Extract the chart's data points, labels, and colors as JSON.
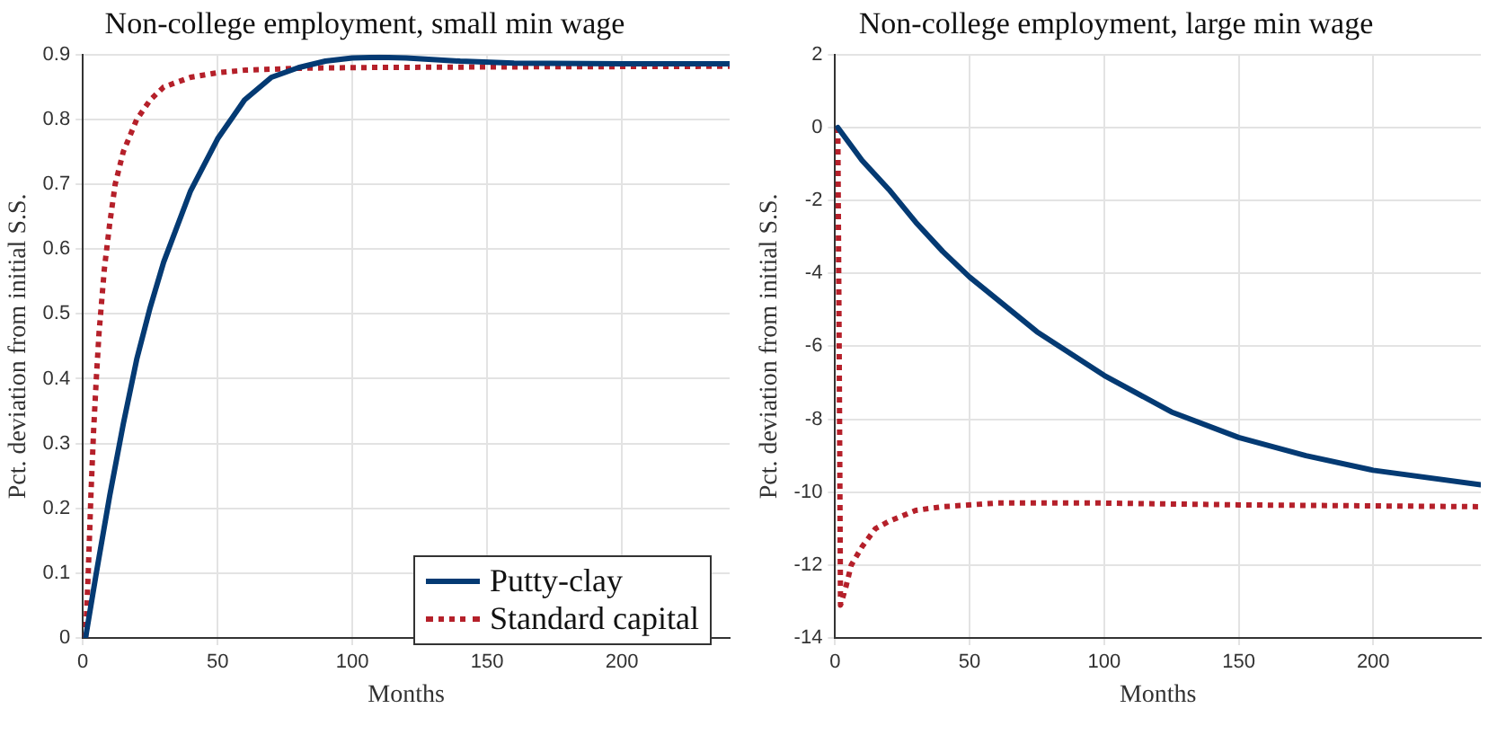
{
  "chart_data": [
    {
      "type": "line",
      "title": "Non-college employment, small min wage",
      "xlabel": "Months",
      "ylabel": "Pct. deviation from initial S.S.",
      "xlim": [
        0,
        240
      ],
      "xticks": [
        0,
        50,
        100,
        150,
        200
      ],
      "ylim": [
        0,
        0.9
      ],
      "yticks": [
        0,
        0.1,
        0.2,
        0.3,
        0.4,
        0.5,
        0.6,
        0.7,
        0.8,
        0.9
      ],
      "grid": true,
      "legend": "bottom right",
      "series": [
        {
          "name": "Putty-clay",
          "color": "#043a73",
          "line_style": "solid",
          "x": [
            1,
            5,
            10,
            15,
            20,
            25,
            30,
            40,
            50,
            60,
            70,
            80,
            90,
            100,
            110,
            120,
            140,
            160,
            200,
            240
          ],
          "values": [
            0,
            0.1,
            0.22,
            0.33,
            0.43,
            0.51,
            0.58,
            0.69,
            0.77,
            0.83,
            0.865,
            0.88,
            0.89,
            0.895,
            0.896,
            0.895,
            0.89,
            0.887,
            0.886,
            0.886
          ]
        },
        {
          "name": "Standard capital",
          "color": "#b5202a",
          "line_style": "dotted",
          "x": [
            1,
            2,
            3,
            4,
            5,
            6,
            8,
            10,
            12,
            15,
            20,
            25,
            30,
            40,
            50,
            60,
            80,
            100,
            150,
            240
          ],
          "values": [
            0,
            0.1,
            0.22,
            0.32,
            0.4,
            0.47,
            0.57,
            0.64,
            0.7,
            0.75,
            0.8,
            0.83,
            0.85,
            0.865,
            0.872,
            0.876,
            0.879,
            0.88,
            0.881,
            0.882
          ]
        }
      ]
    },
    {
      "type": "line",
      "title": "Non-college employment, large min wage",
      "xlabel": "Months",
      "ylabel": "Pct. deviation from initial S.S.",
      "xlim": [
        0,
        240
      ],
      "xticks": [
        0,
        50,
        100,
        150,
        200
      ],
      "ylim": [
        -14,
        2
      ],
      "yticks": [
        -14,
        -12,
        -10,
        -8,
        -6,
        -4,
        -2,
        0,
        2
      ],
      "grid": true,
      "series": [
        {
          "color": "#043a73",
          "line_style": "solid",
          "x": [
            1,
            10,
            20,
            30,
            40,
            50,
            60,
            75,
            100,
            125,
            150,
            175,
            200,
            240
          ],
          "values": [
            0,
            -0.9,
            -1.7,
            -2.6,
            -3.4,
            -4.1,
            -4.7,
            -5.6,
            -6.8,
            -7.8,
            -8.5,
            -9.0,
            -9.4,
            -9.8
          ]
        },
        {
          "color": "#b5202a",
          "line_style": "dotted",
          "x": [
            1,
            1.5,
            2,
            4,
            6,
            10,
            15,
            20,
            30,
            40,
            60,
            100,
            150,
            240
          ],
          "values": [
            0,
            -6,
            -13.1,
            -12.6,
            -12.0,
            -11.5,
            -11.0,
            -10.8,
            -10.5,
            -10.4,
            -10.3,
            -10.3,
            -10.35,
            -10.4
          ]
        }
      ]
    }
  ]
}
